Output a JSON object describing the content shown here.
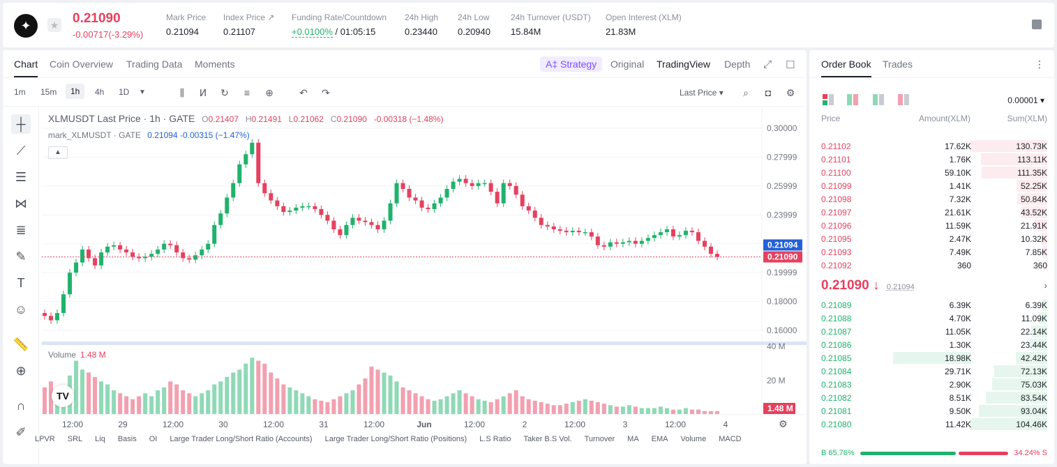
{
  "header": {
    "price": "0.21090",
    "change": "-0.00717(-3.29%)",
    "stats": [
      {
        "label": "Mark Price",
        "value": "0.21094"
      },
      {
        "label": "Index Price ↗",
        "value": "0.21107"
      },
      {
        "label": "Funding Rate/Countdown",
        "value": "+0.0100%",
        "value2": " / 01:05:15"
      },
      {
        "label": "24h High",
        "value": "0.23440"
      },
      {
        "label": "24h Low",
        "value": "0.20940"
      },
      {
        "label": "24h Turnover (USDT)",
        "value": "15.84M"
      },
      {
        "label": "Open Interest (XLM)",
        "value": "21.83M"
      }
    ]
  },
  "chart_tabs": {
    "left": [
      "Chart",
      "Coin Overview",
      "Trading Data",
      "Moments"
    ],
    "strategy": "A‡ Strategy",
    "right": [
      "Original",
      "TradingView",
      "Depth"
    ]
  },
  "toolbar": {
    "timeframes": [
      "1m",
      "15m",
      "1h",
      "4h",
      "1D"
    ],
    "active_timeframe": "1h",
    "price_type": "Last Price ▾"
  },
  "legend": {
    "title": "XLMUSDT Last Price · 1h · GATE",
    "o": "O",
    "o_val": "0.21407",
    "h": "H",
    "h_val": "0.21491",
    "l": "L",
    "l_val": "0.21062",
    "c": "C",
    "c_val": "0.21090",
    "chg": "-0.00318 (−1.48%)",
    "mark_title": "mark_XLMUSDT · GATE",
    "mark_vals": "0.21094 -0.00315 (−1.47%)"
  },
  "volume_legend": {
    "label": "Volume",
    "value": "1.48 M"
  },
  "chart_data": {
    "type": "candlestick",
    "y_ticks": [
      "0.30000",
      "0.27999",
      "0.25999",
      "0.23999",
      "0.21999",
      "0.19999",
      "0.18000",
      "0.16000"
    ],
    "y_tick_values": [
      0.3,
      0.28,
      0.26,
      0.24,
      0.22,
      0.2,
      0.18,
      0.16
    ],
    "mark_label": "0.21094",
    "last_label": "0.21090",
    "mark_value": 0.21094,
    "last_value": 0.2109,
    "volume_ticks": [
      "40 M",
      "20 M"
    ],
    "volume_last_label": "1.48 M",
    "x_ticks": [
      "12:00",
      "29",
      "12:00",
      "30",
      "12:00",
      "31",
      "12:00",
      "Jun",
      "12:00",
      "2",
      "12:00",
      "3",
      "12:00",
      "4"
    ],
    "close_path": [
      0.17,
      0.167,
      0.172,
      0.185,
      0.2,
      0.207,
      0.216,
      0.21,
      0.205,
      0.214,
      0.218,
      0.219,
      0.216,
      0.214,
      0.211,
      0.21,
      0.211,
      0.213,
      0.216,
      0.22,
      0.219,
      0.214,
      0.21,
      0.209,
      0.212,
      0.216,
      0.22,
      0.233,
      0.241,
      0.252,
      0.262,
      0.275,
      0.282,
      0.29,
      0.262,
      0.255,
      0.25,
      0.246,
      0.242,
      0.243,
      0.245,
      0.246,
      0.246,
      0.244,
      0.24,
      0.236,
      0.23,
      0.226,
      0.233,
      0.238,
      0.236,
      0.235,
      0.233,
      0.23,
      0.236,
      0.248,
      0.262,
      0.258,
      0.252,
      0.25,
      0.245,
      0.244,
      0.248,
      0.252,
      0.258,
      0.263,
      0.265,
      0.262,
      0.26,
      0.262,
      0.262,
      0.256,
      0.248,
      0.262,
      0.26,
      0.254,
      0.246,
      0.243,
      0.238,
      0.233,
      0.232,
      0.23,
      0.229,
      0.228,
      0.229,
      0.228,
      0.228,
      0.225,
      0.219,
      0.218,
      0.221,
      0.22,
      0.221,
      0.222,
      0.22,
      0.222,
      0.224,
      0.226,
      0.228,
      0.23,
      0.225,
      0.226,
      0.229,
      0.228,
      0.222,
      0.218,
      0.213,
      0.211
    ],
    "volume_path": [
      18,
      22,
      12,
      14,
      26,
      36,
      30,
      28,
      25,
      22,
      20,
      16,
      14,
      12,
      10,
      12,
      14,
      12,
      16,
      18,
      22,
      20,
      16,
      14,
      12,
      14,
      16,
      20,
      22,
      25,
      28,
      30,
      34,
      38,
      36,
      34,
      28,
      24,
      20,
      18,
      16,
      14,
      12,
      10,
      9,
      8,
      10,
      12,
      14,
      16,
      20,
      24,
      32,
      30,
      28,
      26,
      22,
      18,
      16,
      14,
      12,
      10,
      9,
      10,
      12,
      14,
      16,
      14,
      12,
      10,
      9,
      8,
      10,
      12,
      14,
      16,
      12,
      10,
      9,
      8,
      7,
      6,
      6,
      7,
      8,
      9,
      10,
      9,
      8,
      7,
      6,
      5,
      5,
      6,
      5,
      4,
      4,
      4,
      5,
      4,
      3,
      3,
      4,
      3,
      3,
      2,
      2,
      2
    ]
  },
  "bottom_indicators": [
    "LPVR",
    "SRL",
    "Liq",
    "Basis",
    "OI",
    "Large Trader Long/Short Ratio (Accounts)",
    "Large Trader Long/Short Ratio (Positions)",
    "L.S Ratio",
    "Taker B.S Vol.",
    "Turnover",
    "MA",
    "EMA",
    "Volume",
    "MACD"
  ],
  "order_book": {
    "tabs": [
      "Order Book",
      "Trades"
    ],
    "precision": "0.00001 ▾",
    "headers": [
      "Price",
      "Amount(XLM)",
      "Sum(XLM)"
    ],
    "asks": [
      {
        "price": "0.21102",
        "amount": "17.62K",
        "sum": "130.73K",
        "depth": 1.0
      },
      {
        "price": "0.21101",
        "amount": "1.76K",
        "sum": "113.11K",
        "depth": 0.866
      },
      {
        "price": "0.21100",
        "amount": "59.10K",
        "sum": "111.35K",
        "depth": 0.852
      },
      {
        "price": "0.21099",
        "amount": "1.41K",
        "sum": "52.25K",
        "depth": 0.4
      },
      {
        "price": "0.21098",
        "amount": "7.32K",
        "sum": "50.84K",
        "depth": 0.389
      },
      {
        "price": "0.21097",
        "amount": "21.61K",
        "sum": "43.52K",
        "depth": 0.333
      },
      {
        "price": "0.21096",
        "amount": "11.59K",
        "sum": "21.91K",
        "depth": 0.168
      },
      {
        "price": "0.21095",
        "amount": "2.47K",
        "sum": "10.32K",
        "depth": 0.079
      },
      {
        "price": "0.21093",
        "amount": "7.49K",
        "sum": "7.85K",
        "depth": 0.06
      },
      {
        "price": "0.21092",
        "amount": "360",
        "sum": "360",
        "depth": 0.003
      }
    ],
    "mid_price": "0.21090 ↓",
    "mid_mark": "0.21094",
    "bids": [
      {
        "price": "0.21089",
        "amount": "6.39K",
        "sum": "6.39K",
        "depth": 0.061
      },
      {
        "price": "0.21088",
        "amount": "4.70K",
        "sum": "11.09K",
        "depth": 0.106
      },
      {
        "price": "0.21087",
        "amount": "11.05K",
        "sum": "22.14K",
        "depth": 0.212
      },
      {
        "price": "0.21086",
        "amount": "1.30K",
        "sum": "23.44K",
        "depth": 0.224
      },
      {
        "price": "0.21085",
        "amount": "18.98K",
        "sum": "42.42K",
        "depth": 0.406,
        "highlight": true
      },
      {
        "price": "0.21084",
        "amount": "29.71K",
        "sum": "72.13K",
        "depth": 0.69
      },
      {
        "price": "0.21083",
        "amount": "2.90K",
        "sum": "75.03K",
        "depth": 0.718
      },
      {
        "price": "0.21082",
        "amount": "8.51K",
        "sum": "83.54K",
        "depth": 0.8
      },
      {
        "price": "0.21081",
        "amount": "9.50K",
        "sum": "93.04K",
        "depth": 0.89
      },
      {
        "price": "0.21080",
        "amount": "11.42K",
        "sum": "104.46K",
        "depth": 1.0
      }
    ],
    "buy_ratio_label": "B 65.76%",
    "sell_ratio_label": "34.24% S",
    "buy_ratio": 0.6576
  },
  "colors": {
    "up": "#20b26c",
    "down": "#e5415f",
    "up_vol": "#8fd9b6",
    "down_vol": "#f2a0b0",
    "mark": "#2461d8"
  }
}
